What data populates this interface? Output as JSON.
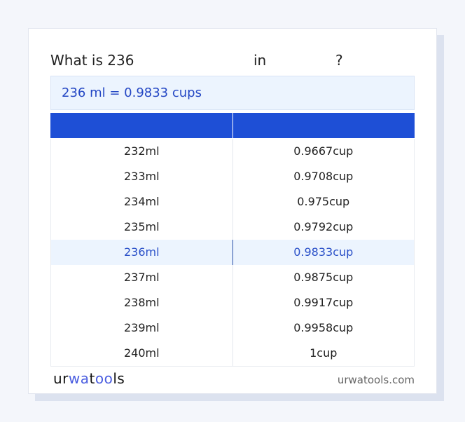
{
  "title": {
    "prefix": "What is 236",
    "middle": "in",
    "suffix": "?"
  },
  "result": "236 ml = 0.9833 cups",
  "table": {
    "rows": [
      {
        "ml": "232ml",
        "cup": "0.9667cup"
      },
      {
        "ml": "233ml",
        "cup": "0.9708cup"
      },
      {
        "ml": "234ml",
        "cup": "0.975cup"
      },
      {
        "ml": "235ml",
        "cup": "0.9792cup"
      },
      {
        "ml": "236ml",
        "cup": "0.9833cup",
        "highlighted": true
      },
      {
        "ml": "237ml",
        "cup": "0.9875cup"
      },
      {
        "ml": "238ml",
        "cup": "0.9917cup"
      },
      {
        "ml": "239ml",
        "cup": "0.9958cup"
      },
      {
        "ml": "240ml",
        "cup": "1cup"
      }
    ]
  },
  "footer": {
    "logo_parts": [
      "ur",
      "wa",
      "t",
      "oo",
      "ls"
    ],
    "site": "urwatools.com"
  },
  "colors": {
    "accent": "#1e4fd6",
    "highlight_bg": "#ecf4fe",
    "highlight_text": "#2a50c8"
  }
}
